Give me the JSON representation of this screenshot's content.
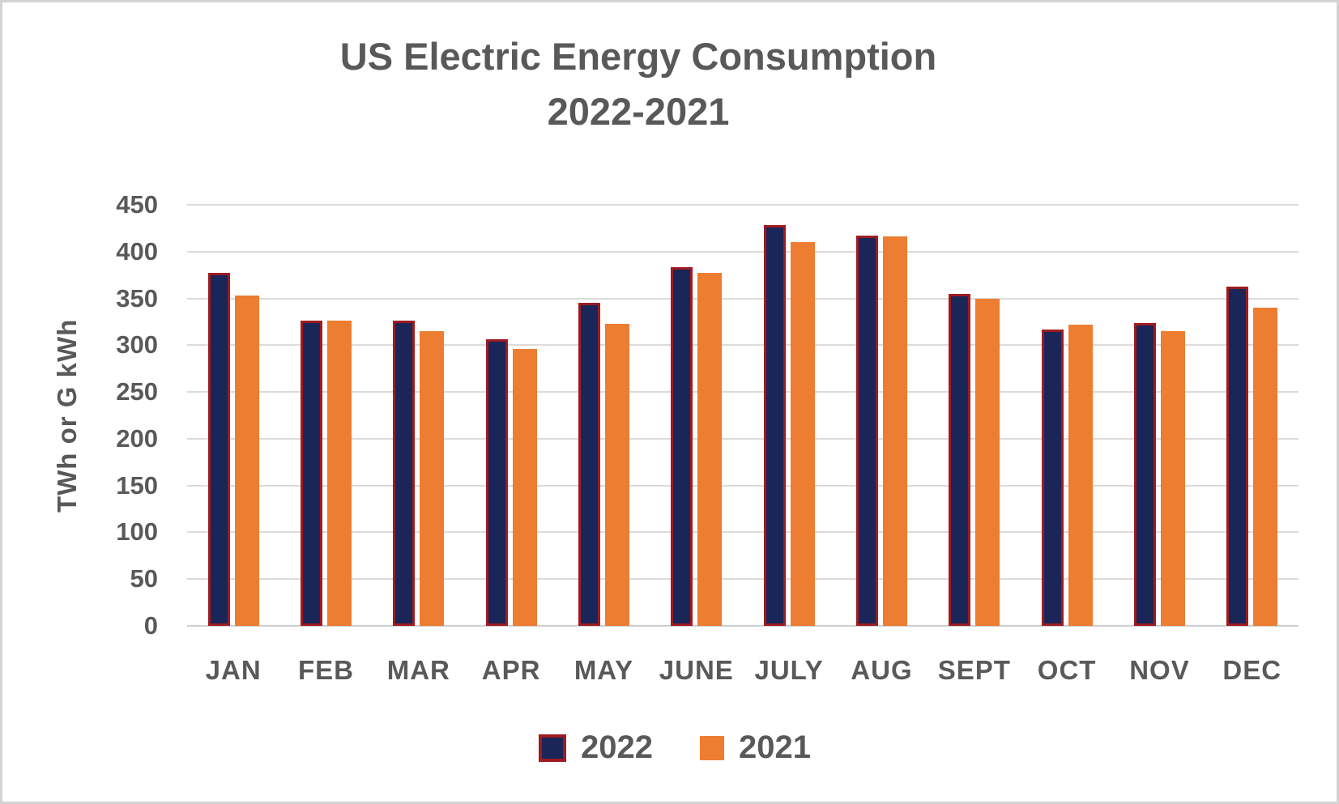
{
  "title": {
    "line1": "US Electric Energy Consumption",
    "line2": "2022-2021"
  },
  "colors": {
    "background": "#ffffff",
    "frame_border": "#d3d3d3",
    "text": "#595959",
    "gridline": "#dbdbdb",
    "axis_line": "#cfcfcf",
    "series_2022_fill": "#1a2558",
    "series_2022_border": "#9e1b20",
    "series_2021_fill": "#ed7d31"
  },
  "chart_data": {
    "type": "bar",
    "title": "US Electric Energy Consumption",
    "subtitle": "2022-2021",
    "xlabel": "",
    "ylabel": "TWh or  G kWh",
    "ylim": [
      0,
      450
    ],
    "ytick_step": 50,
    "yticks": [
      450,
      400,
      350,
      300,
      250,
      200,
      150,
      100,
      50,
      0
    ],
    "grid": true,
    "legend_position": "bottom",
    "categories": [
      "JAN",
      "FEB",
      "MAR",
      "APR",
      "MAY",
      "JUNE",
      "JULY",
      "AUG",
      "SEPT",
      "OCT",
      "NOV",
      "DEC"
    ],
    "series": [
      {
        "name": "2022",
        "values": [
          377,
          326,
          326,
          306,
          345,
          383,
          428,
          417,
          355,
          317,
          324,
          363
        ]
      },
      {
        "name": "2021",
        "values": [
          353,
          326,
          315,
          296,
          323,
          377,
          410,
          416,
          350,
          322,
          315,
          340
        ]
      }
    ]
  }
}
